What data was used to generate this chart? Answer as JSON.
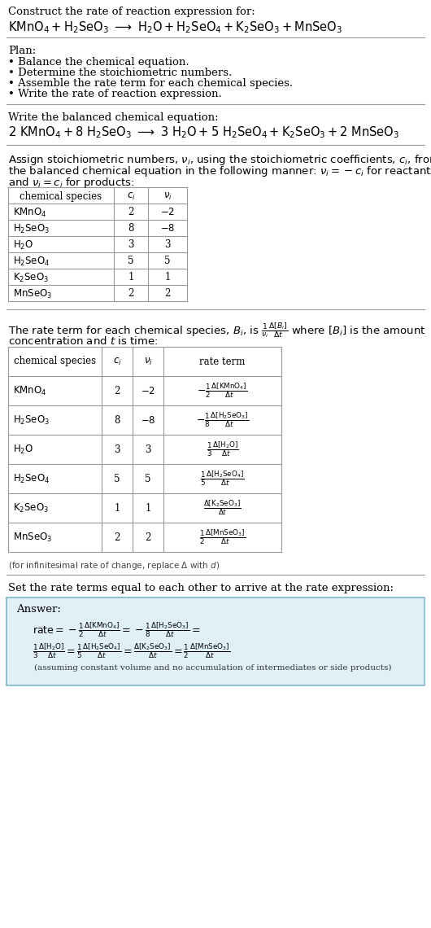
{
  "bg_color": "#ffffff",
  "text_color": "#000000",
  "font_family": "DejaVu Serif",
  "font_size": 9.5,
  "font_size_small": 8.5,
  "font_size_tiny": 7.5,
  "line_color": "#999999",
  "answer_box_color": "#dff0f7",
  "answer_border_color": "#7ab8cc",
  "table1_species": [
    "KMnO_4",
    "H_2SeO_3",
    "H_2O",
    "H_2SeO_4",
    "K_2SeO_3",
    "MnSeO_3"
  ],
  "table1_ci": [
    "2",
    "8",
    "3",
    "5",
    "1",
    "2"
  ],
  "table1_vi": [
    "-2",
    "-8",
    "3",
    "5",
    "1",
    "2"
  ],
  "table2_species": [
    "KMnO_4",
    "H_2SeO_3",
    "H_2O",
    "H_2SeO_4",
    "K_2SeO_3",
    "MnSeO_3"
  ],
  "table2_ci": [
    "2",
    "8",
    "3",
    "5",
    "1",
    "2"
  ],
  "table2_vi": [
    "-2",
    "-8",
    "3",
    "5",
    "1",
    "2"
  ]
}
